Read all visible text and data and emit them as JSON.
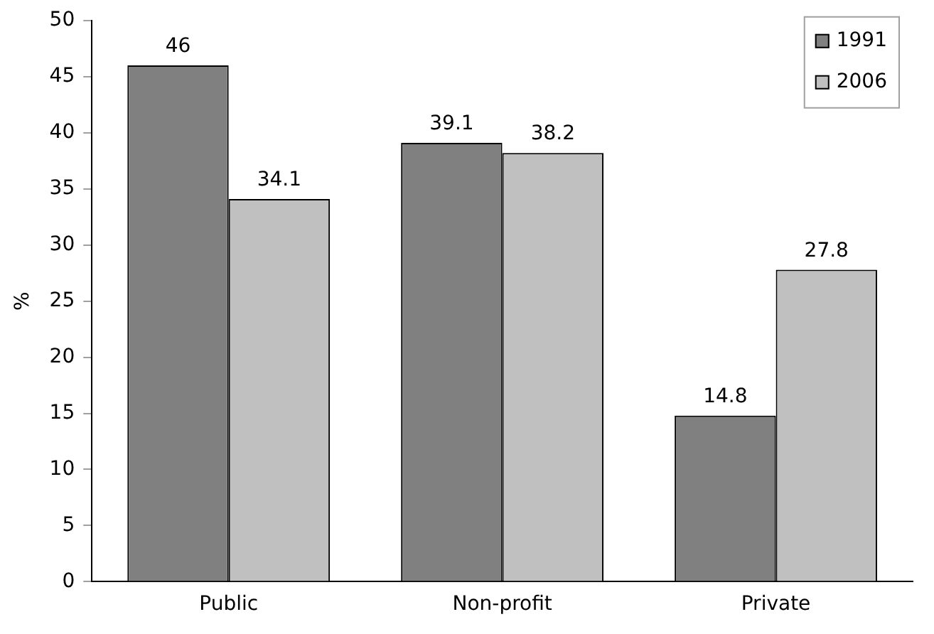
{
  "chart_data": {
    "type": "bar",
    "ylabel": "%",
    "categories": [
      "Public",
      "Non-profit",
      "Private"
    ],
    "series": [
      {
        "name": "1991",
        "color": "#808080",
        "values": [
          46,
          39.1,
          14.8
        ]
      },
      {
        "name": "2006",
        "color": "#c0c0c0",
        "values": [
          34.1,
          38.2,
          27.8
        ]
      }
    ],
    "ylim": [
      0,
      50
    ],
    "yticks": [
      0,
      5,
      10,
      15,
      20,
      25,
      30,
      35,
      40,
      45,
      50
    ],
    "grid": false,
    "legend": "top right",
    "data_labels": true
  }
}
